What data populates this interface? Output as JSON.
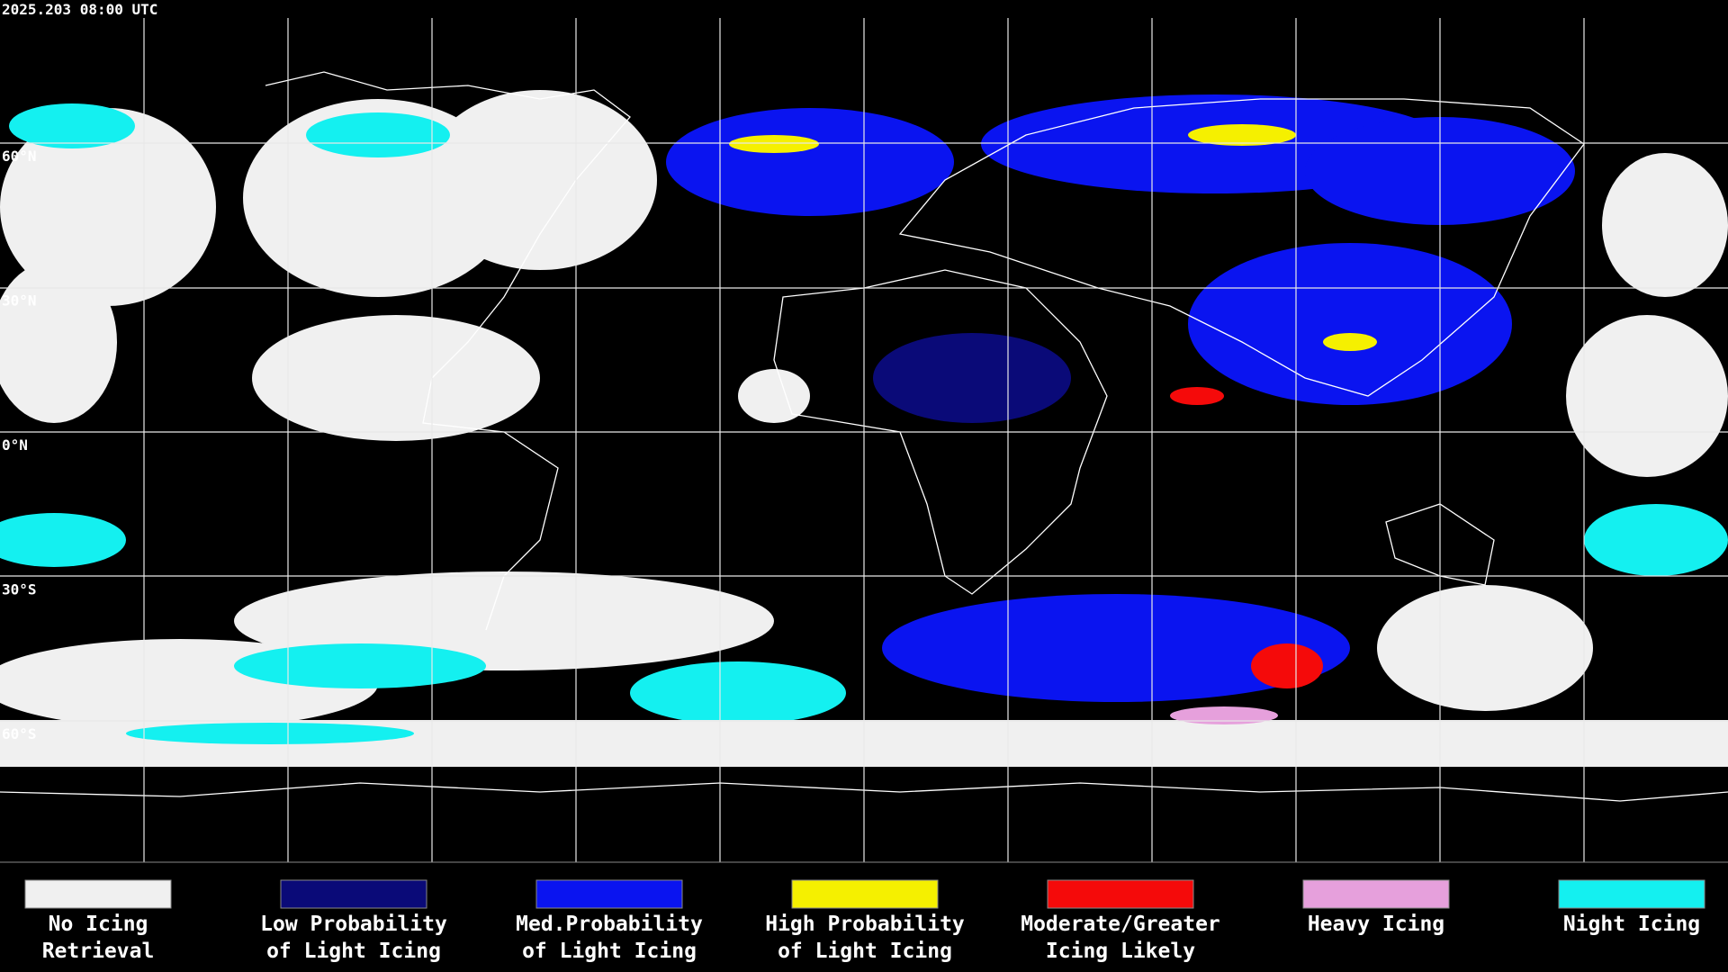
{
  "header": {
    "timestamp": "2025.203 08:00 UTC"
  },
  "map": {
    "lat_labels": [
      "60°N",
      "30°N",
      "0°N",
      "30°S",
      "60°S"
    ]
  },
  "legend": {
    "items": [
      {
        "color": "#f0f0f0",
        "lines": [
          "No Icing",
          "Retrieval"
        ]
      },
      {
        "color": "#0a0a78",
        "lines": [
          "Low Probability",
          "of Light Icing"
        ]
      },
      {
        "color": "#0a14f0",
        "lines": [
          "Med.Probability",
          "of Light Icing"
        ]
      },
      {
        "color": "#f5f000",
        "lines": [
          "High Probability",
          "of Light Icing"
        ]
      },
      {
        "color": "#f50a0a",
        "lines": [
          "Moderate/Greater",
          "Icing Likely"
        ]
      },
      {
        "color": "#e6a0dc",
        "lines": [
          "Heavy Icing"
        ]
      },
      {
        "color": "#14f0f0",
        "lines": [
          "Night Icing"
        ]
      }
    ]
  }
}
